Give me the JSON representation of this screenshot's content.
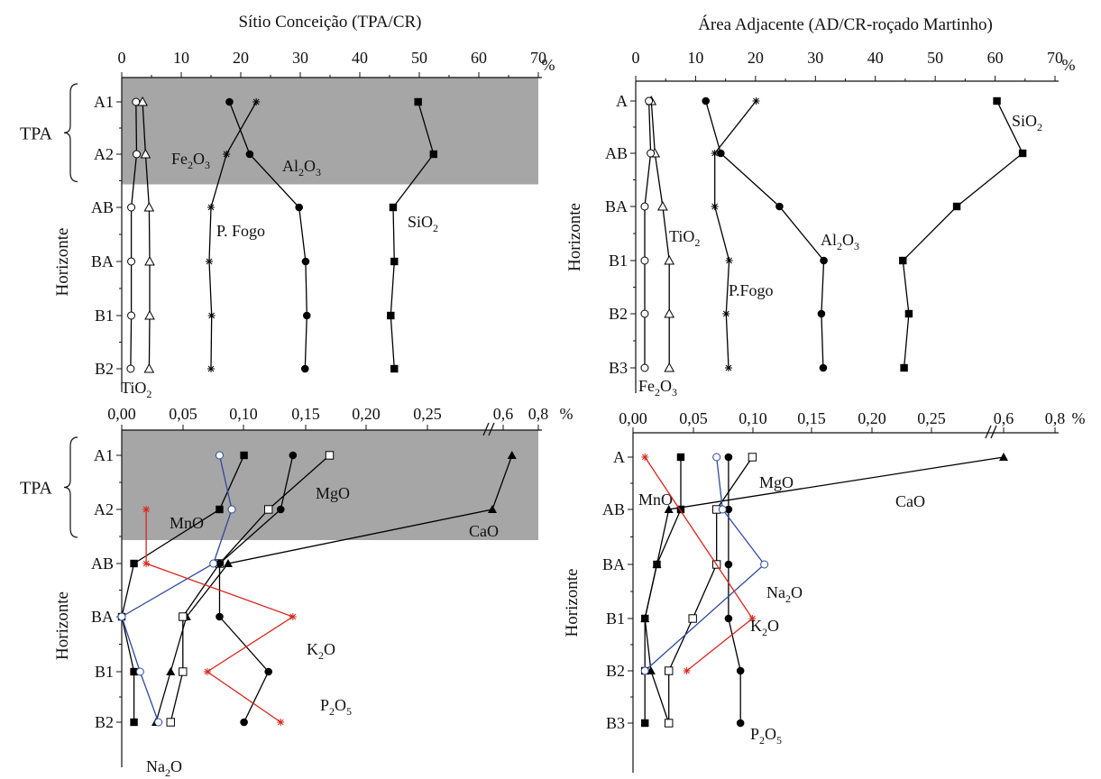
{
  "chart_data": [
    {
      "type": "line",
      "title": "Sítio Conceição (TPA/CR)",
      "ylabel": "Horizonte",
      "unit": "%",
      "xlim": [
        0,
        70
      ],
      "xticks": [
        "0",
        "10",
        "20",
        "30",
        "40",
        "50",
        "60",
        "70"
      ],
      "y_categories": [
        "A1",
        "A2",
        "AB",
        "BA",
        "B1",
        "B2"
      ],
      "highlight": {
        "label": "TPA",
        "from": "A1",
        "to": "A2",
        "color": "#a6a6a6"
      },
      "series": [
        {
          "name": "SiO2",
          "label": "SiO",
          "sub": "2",
          "color": "#000000",
          "marker": "square",
          "values": [
            49.8,
            52.4,
            45.6,
            45.8,
            45.2,
            45.8
          ]
        },
        {
          "name": "Al2O3",
          "label": "Al",
          "sub": "2",
          "tail": "O",
          "sub2": "3",
          "color": "#000000",
          "marker": "circle",
          "values": [
            18.1,
            21.5,
            29.8,
            30.9,
            31.1,
            30.8
          ]
        },
        {
          "name": "P. Fogo",
          "label": "P. Fogo",
          "color": "#000000",
          "marker": "star",
          "values": [
            22.6,
            17.6,
            15.0,
            14.7,
            15.1,
            15.0
          ]
        },
        {
          "name": "Fe2O3",
          "label": "Fe",
          "sub": "2",
          "tail": "O",
          "sub2": "3",
          "color": "#000000",
          "marker": "triangle-open",
          "values": [
            3.5,
            4.0,
            4.6,
            4.7,
            4.7,
            4.6
          ]
        },
        {
          "name": "TiO2",
          "label": "TiO",
          "sub": "2",
          "color": "#000000",
          "marker": "circle-open",
          "values": [
            2.4,
            2.5,
            1.6,
            1.6,
            1.6,
            1.5
          ]
        }
      ]
    },
    {
      "type": "line",
      "title": "Área Adjacente (AD/CR-roçado Martinho)",
      "ylabel": "Horizonte",
      "unit": "%",
      "xlim": [
        0,
        70
      ],
      "xticks": [
        "0",
        "10",
        "20",
        "30",
        "40",
        "50",
        "60",
        "70"
      ],
      "y_categories": [
        "A",
        "AB",
        "BA",
        "B1",
        "B2",
        "B3"
      ],
      "series": [
        {
          "name": "SiO2",
          "label": "SiO",
          "sub": "2",
          "color": "#000000",
          "marker": "square",
          "values": [
            60.3,
            64.6,
            53.6,
            44.6,
            45.6,
            44.8
          ]
        },
        {
          "name": "Al2O3",
          "label": "Al",
          "sub": "2",
          "tail": "O",
          "sub2": "3",
          "color": "#000000",
          "marker": "circle",
          "values": [
            11.7,
            14.2,
            24.0,
            31.4,
            31.0,
            31.3
          ]
        },
        {
          "name": "P.Fogo",
          "label": "P.Fogo",
          "color": "#000000",
          "marker": "star",
          "values": [
            20.1,
            13.2,
            13.2,
            15.6,
            15.1,
            15.5
          ]
        },
        {
          "name": "TiO2",
          "label": "TiO",
          "sub": "2",
          "color": "#000000",
          "marker": "triangle-open",
          "values": [
            2.6,
            3.2,
            4.5,
            5.6,
            5.6,
            5.6
          ]
        },
        {
          "name": "Fe2O3",
          "label": "Fe",
          "sub": "2",
          "tail": "O",
          "sub2": "3",
          "color": "#000000",
          "marker": "circle-open",
          "values": [
            2.2,
            2.5,
            1.5,
            1.5,
            1.5,
            1.5
          ]
        }
      ]
    },
    {
      "type": "line",
      "ylabel": "Horizonte",
      "unit": "%",
      "xlim": [
        0,
        0.8
      ],
      "xticks": [
        "0,00",
        "0,05",
        "0,10",
        "0,15",
        "0,20",
        "0,25",
        "0,6",
        "0,8"
      ],
      "axis_break": true,
      "y_categories": [
        "A1",
        "A2",
        "AB",
        "BA",
        "B1",
        "B2"
      ],
      "highlight": {
        "label": "TPA",
        "from": "A1",
        "to": "A2",
        "color": "#a6a6a6"
      },
      "series": [
        {
          "name": "CaO",
          "label": "CaO",
          "color": "#000000",
          "marker": "triangle",
          "values": [
            0.65,
            0.55,
            0.087,
            0.053,
            0.04,
            0.028
          ]
        },
        {
          "name": "MgO",
          "label": "MgO",
          "color": "#000000",
          "marker": "square-open",
          "values": [
            0.17,
            0.12,
            0.08,
            0.05,
            0.05,
            0.04
          ]
        },
        {
          "name": "P2O5",
          "label": "P",
          "sub": "2",
          "tail": "O",
          "sub2": "5",
          "color": "#000000",
          "marker": "circle",
          "values": [
            0.14,
            0.13,
            0.08,
            0.08,
            0.12,
            0.1
          ]
        },
        {
          "name": "MnO",
          "label": "MnO",
          "color": "#000000",
          "marker": "square",
          "values": [
            0.1,
            0.08,
            0.01,
            0.0,
            0.01,
            0.01
          ]
        },
        {
          "name": "Na2O",
          "label": "Na",
          "sub": "2",
          "tail": "O",
          "color": "#2e4a9e",
          "marker": "circle-open",
          "values": [
            0.08,
            0.09,
            0.075,
            0.0,
            0.015,
            0.03
          ]
        },
        {
          "name": "K2O",
          "label": "K",
          "sub": "2",
          "tail": "O",
          "color": "#d9261c",
          "marker": "star",
          "values": [
            null,
            0.02,
            0.02,
            0.14,
            0.07,
            0.13
          ]
        }
      ]
    },
    {
      "type": "line",
      "ylabel": "Horizonte",
      "unit": "%",
      "xlim": [
        0,
        0.8
      ],
      "xticks": [
        "0,00",
        "0,05",
        "0,10",
        "0,15",
        "0,20",
        "0,25",
        "0,6",
        "0,8"
      ],
      "axis_break": true,
      "y_categories": [
        "A",
        "AB",
        "BA",
        "B1",
        "B2",
        "B3"
      ],
      "series": [
        {
          "name": "CaO",
          "label": "CaO",
          "color": "#000000",
          "marker": "triangle",
          "values": [
            0.6,
            0.03,
            0.02,
            0.01,
            0.015,
            0.03
          ]
        },
        {
          "name": "MgO",
          "label": "MgO",
          "color": "#000000",
          "marker": "square-open",
          "values": [
            0.1,
            0.07,
            0.07,
            0.05,
            0.03,
            0.03
          ]
        },
        {
          "name": "P2O5",
          "label": "P",
          "sub": "2",
          "tail": "O",
          "sub2": "5",
          "color": "#000000",
          "marker": "circle",
          "values": [
            0.08,
            0.08,
            0.08,
            0.08,
            0.09,
            0.09
          ]
        },
        {
          "name": "MnO",
          "label": "MnO",
          "color": "#000000",
          "marker": "square",
          "values": [
            0.04,
            0.04,
            0.02,
            0.01,
            0.01,
            0.01
          ]
        },
        {
          "name": "Na2O",
          "label": "Na",
          "sub": "2",
          "tail": "O",
          "color": "#2e4a9e",
          "marker": "circle-open",
          "values": [
            0.07,
            0.075,
            0.11,
            null,
            0.01,
            null
          ]
        },
        {
          "name": "K2O",
          "label": "K",
          "sub": "2",
          "tail": "O",
          "color": "#d9261c",
          "marker": "star",
          "values": [
            0.01,
            null,
            null,
            0.1,
            0.045,
            null
          ]
        }
      ]
    }
  ]
}
